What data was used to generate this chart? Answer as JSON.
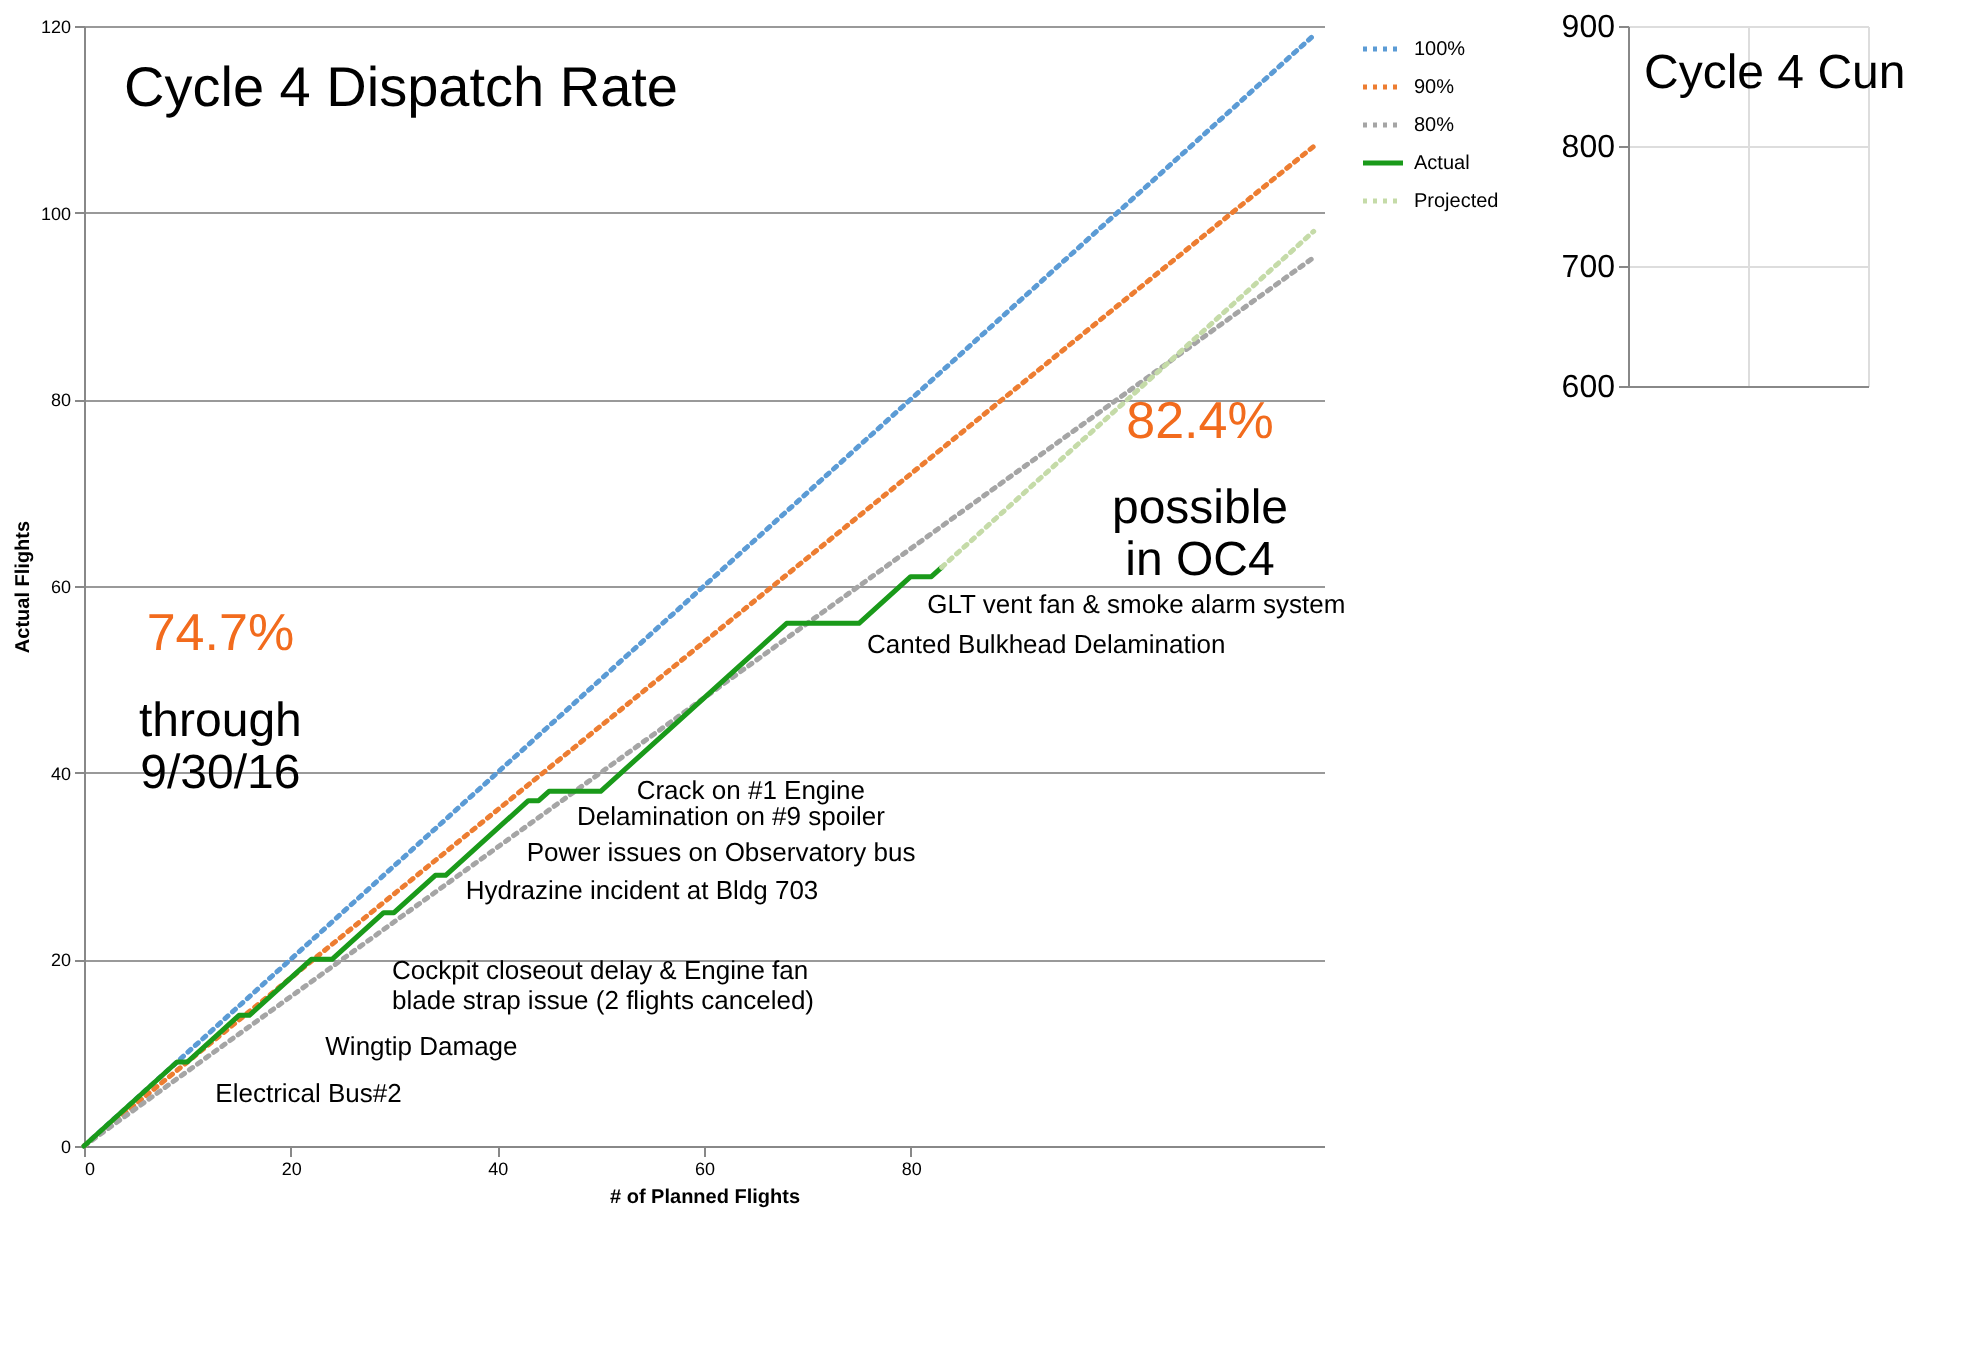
{
  "chart_data": [
    {
      "type": "line",
      "title": "Cycle 4 Dispatch Rate",
      "xlabel": "# of Planned Flights",
      "ylabel": "Actual Flights",
      "xlim": [
        0,
        120
      ],
      "xticks": [
        0,
        20,
        40,
        60,
        80
      ],
      "ylim": [
        0,
        120
      ],
      "yticks": [
        0,
        20,
        40,
        60,
        80,
        100,
        120
      ],
      "grid": "y",
      "legend": "right",
      "series": [
        {
          "name": "100%",
          "color": "#5b9bd5",
          "line_style": "dotted",
          "x": [
            0,
            119
          ],
          "values": [
            0,
            119
          ]
        },
        {
          "name": "90%",
          "color": "#ed7d31",
          "line_style": "dotted",
          "x": [
            0,
            119
          ],
          "values": [
            0,
            107.1
          ]
        },
        {
          "name": "80%",
          "color": "#a5a5a5",
          "line_style": "dotted",
          "x": [
            0,
            119
          ],
          "values": [
            0,
            95.2
          ]
        },
        {
          "name": "Actual",
          "color": "#1a9a1a",
          "line_style": "solid",
          "x": [
            0,
            9,
            10,
            15,
            16,
            22,
            24,
            29,
            30,
            34,
            35,
            43,
            44,
            45,
            50,
            68,
            75,
            80,
            82,
            83
          ],
          "values": [
            0,
            9,
            9,
            14,
            14,
            20,
            20,
            25,
            25,
            29,
            29,
            37,
            37,
            38,
            38,
            56,
            56,
            61,
            61,
            62
          ]
        },
        {
          "name": "Projected",
          "color": "#c5dba8",
          "line_style": "dotted",
          "x": [
            83,
            119
          ],
          "values": [
            62,
            98
          ]
        }
      ],
      "annotations": [
        "74.7%",
        "through\n9/30/16",
        "82.4%",
        "possible\nin OC4",
        {
          "text": "Electrical Bus#2",
          "x": 10,
          "y": 9
        },
        {
          "text": "Wingtip Damage",
          "x": 16,
          "y": 14
        },
        {
          "text": "Cockpit closeout delay & Engine fan\nblade strap issue (2 flights canceled)",
          "x": 24,
          "y": 20
        },
        {
          "text": "Hydrazine incident at Bldg 703",
          "x": 35,
          "y": 29
        },
        {
          "text": "Power issues on Observatory bus",
          "x": 44,
          "y": 37
        },
        {
          "text": "Delamination on #9 spoiler",
          "x": 45,
          "y": 38
        },
        {
          "text": "Crack on #1 Engine",
          "x": 50,
          "y": 38
        },
        {
          "text": "Canted Bulkhead Delamination",
          "x": 75,
          "y": 56
        },
        {
          "text": "GLT vent fan & smoke alarm system",
          "x": 82,
          "y": 61
        }
      ]
    },
    {
      "type": "line",
      "title": "Cycle 4 Cun",
      "categories": [
        null,
        null,
        null
      ],
      "ylim": [
        600,
        900
      ],
      "yticks": [
        600,
        700,
        800,
        900
      ],
      "grid": true,
      "tick_labels": "y"
    }
  ]
}
